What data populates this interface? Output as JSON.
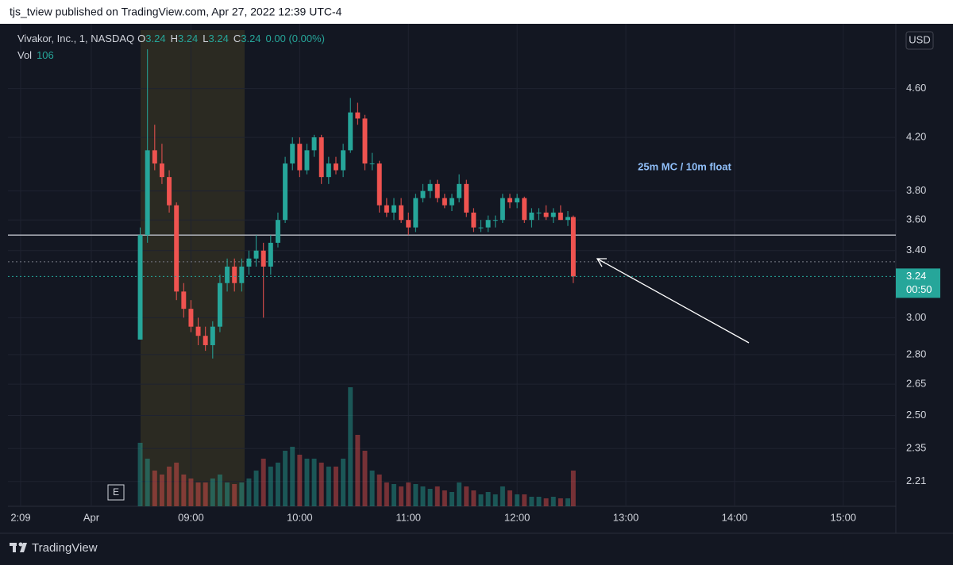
{
  "header": {
    "published": "tjs_tview published on TradingView.com, Apr 27, 2022 12:39 UTC-4"
  },
  "legend": {
    "symbol": "Vivakor, Inc., 1, NASDAQ",
    "ohlc": [
      {
        "key": "O",
        "value": 3.24
      },
      {
        "key": "H",
        "value": 3.24
      },
      {
        "key": "L",
        "value": 3.24
      },
      {
        "key": "C",
        "value": 3.24
      }
    ],
    "change": "0.00 (0.00%)",
    "vol_label": "Vol",
    "vol_value": 106
  },
  "footer": {
    "brand": "TradingView"
  },
  "chart_data": {
    "type": "candlestick",
    "currency": "USD",
    "annotation": "25m MC / 10m float",
    "log_scale": true,
    "grid": true,
    "up_color": "#26a69a",
    "down_color": "#ef5350",
    "last_price": 3.24,
    "countdown": "00:50",
    "hlines": [
      {
        "value": 3.5,
        "style": "solid",
        "color": "#b2b5be"
      },
      {
        "value": 3.33,
        "style": "dotted",
        "color": "#787b86"
      }
    ],
    "xlim": [
      439,
      929
    ],
    "xticks": [
      {
        "value": 446,
        "label": "2:09"
      },
      {
        "value": 485,
        "label": "Apr"
      },
      {
        "value": 540,
        "label": "09:00"
      },
      {
        "value": 600,
        "label": "10:00"
      },
      {
        "value": 660,
        "label": "11:00"
      },
      {
        "value": 720,
        "label": "12:00"
      },
      {
        "value": 780,
        "label": "13:00"
      },
      {
        "value": 840,
        "label": "14:00"
      },
      {
        "value": 900,
        "label": "15:00"
      }
    ],
    "ylim": [
      2.11,
      5.13
    ],
    "yticks": [
      2.21,
      2.35,
      {
        "value": 2.5,
        "label": "2.50"
      },
      2.65,
      {
        "value": 2.8,
        "label": "2.80"
      },
      {
        "value": 3,
        "label": "3.00"
      },
      {
        "value": 3.4,
        "label": "3.40"
      },
      {
        "value": 3.6,
        "label": "3.60"
      },
      {
        "value": 3.8,
        "label": "3.80"
      },
      {
        "value": 4.2,
        "label": "4.20"
      },
      {
        "value": 4.6,
        "label": "4.60"
      }
    ],
    "volume_ylim": [
      0,
      240000
    ],
    "x": [
      512,
      516,
      520,
      524,
      528,
      532,
      536,
      540,
      544,
      548,
      552,
      556,
      560,
      564,
      568,
      572,
      576,
      580,
      584,
      588,
      592,
      596,
      600,
      604,
      608,
      612,
      616,
      620,
      624,
      628,
      632,
      636,
      640,
      644,
      648,
      652,
      656,
      660,
      664,
      668,
      672,
      676,
      680,
      684,
      688,
      692,
      696,
      700,
      704,
      708,
      712,
      716,
      720,
      724,
      728,
      732,
      736,
      740,
      744,
      748,
      751
    ],
    "open": [
      2.88,
      3.5,
      4.1,
      4.0,
      3.9,
      3.7,
      3.15,
      3.05,
      2.95,
      2.9,
      2.85,
      2.95,
      3.2,
      3.3,
      3.2,
      3.3,
      3.35,
      3.4,
      3.3,
      3.45,
      3.6,
      4.0,
      4.15,
      3.95,
      4.1,
      4.2,
      3.9,
      4.0,
      3.95,
      4.1,
      4.4,
      4.35,
      4.0,
      4.0,
      3.7,
      3.65,
      3.7,
      3.6,
      3.55,
      3.75,
      3.8,
      3.85,
      3.75,
      3.7,
      3.75,
      3.85,
      3.65,
      3.55,
      3.55,
      3.6,
      3.6,
      3.75,
      3.72,
      3.75,
      3.6,
      3.65,
      3.65,
      3.62,
      3.65,
      3.6,
      3.62
    ],
    "high": [
      3.55,
      4.95,
      4.3,
      4.15,
      3.95,
      3.72,
      3.2,
      3.1,
      3.0,
      2.95,
      2.98,
      3.25,
      3.35,
      3.35,
      3.35,
      3.4,
      3.5,
      3.45,
      3.5,
      3.65,
      4.05,
      4.2,
      4.2,
      4.15,
      4.22,
      4.22,
      4.05,
      4.05,
      4.15,
      4.52,
      4.48,
      4.38,
      4.08,
      4.02,
      3.75,
      3.75,
      3.75,
      3.65,
      3.78,
      3.85,
      3.88,
      3.88,
      3.78,
      3.78,
      3.92,
      3.88,
      3.68,
      3.6,
      3.63,
      3.63,
      3.78,
      3.78,
      3.78,
      3.76,
      3.68,
      3.68,
      3.7,
      3.68,
      3.7,
      3.66,
      3.63
    ],
    "low": [
      2.88,
      3.45,
      3.95,
      3.85,
      3.65,
      3.1,
      3.0,
      2.92,
      2.85,
      2.82,
      2.78,
      2.92,
      3.15,
      3.15,
      3.15,
      3.25,
      3.3,
      3.0,
      3.25,
      3.42,
      3.58,
      3.95,
      3.9,
      3.92,
      4.05,
      3.85,
      3.85,
      3.92,
      3.9,
      4.08,
      4.3,
      3.95,
      3.95,
      3.65,
      3.62,
      3.6,
      3.58,
      3.5,
      3.52,
      3.72,
      3.75,
      3.72,
      3.68,
      3.66,
      3.72,
      3.62,
      3.52,
      3.52,
      3.52,
      3.55,
      3.58,
      3.68,
      3.68,
      3.58,
      3.55,
      3.6,
      3.6,
      3.58,
      3.6,
      3.56,
      3.2
    ],
    "close": [
      3.5,
      4.1,
      4.0,
      3.9,
      3.7,
      3.15,
      3.05,
      2.95,
      2.9,
      2.85,
      2.95,
      3.2,
      3.3,
      3.2,
      3.3,
      3.35,
      3.4,
      3.3,
      3.45,
      3.6,
      4.0,
      4.15,
      3.95,
      4.1,
      4.2,
      3.9,
      4.0,
      3.95,
      4.1,
      4.4,
      4.35,
      4.0,
      4.0,
      3.7,
      3.65,
      3.7,
      3.6,
      3.55,
      3.75,
      3.8,
      3.85,
      3.75,
      3.7,
      3.75,
      3.85,
      3.65,
      3.55,
      3.55,
      3.6,
      3.6,
      3.75,
      3.72,
      3.75,
      3.6,
      3.65,
      3.65,
      3.62,
      3.65,
      3.6,
      3.62,
      3.24
    ],
    "volume": [
      80000,
      60000,
      45000,
      40000,
      50000,
      55000,
      40000,
      35000,
      30000,
      30000,
      35000,
      40000,
      30000,
      28000,
      30000,
      35000,
      45000,
      60000,
      50000,
      55000,
      70000,
      75000,
      65000,
      60000,
      60000,
      55000,
      50000,
      50000,
      60000,
      150000,
      90000,
      70000,
      45000,
      40000,
      30000,
      28000,
      25000,
      30000,
      28000,
      25000,
      22000,
      25000,
      20000,
      18000,
      30000,
      25000,
      20000,
      15000,
      18000,
      15000,
      25000,
      20000,
      15000,
      15000,
      12000,
      12000,
      10000,
      12000,
      10000,
      10000,
      45000
    ]
  }
}
